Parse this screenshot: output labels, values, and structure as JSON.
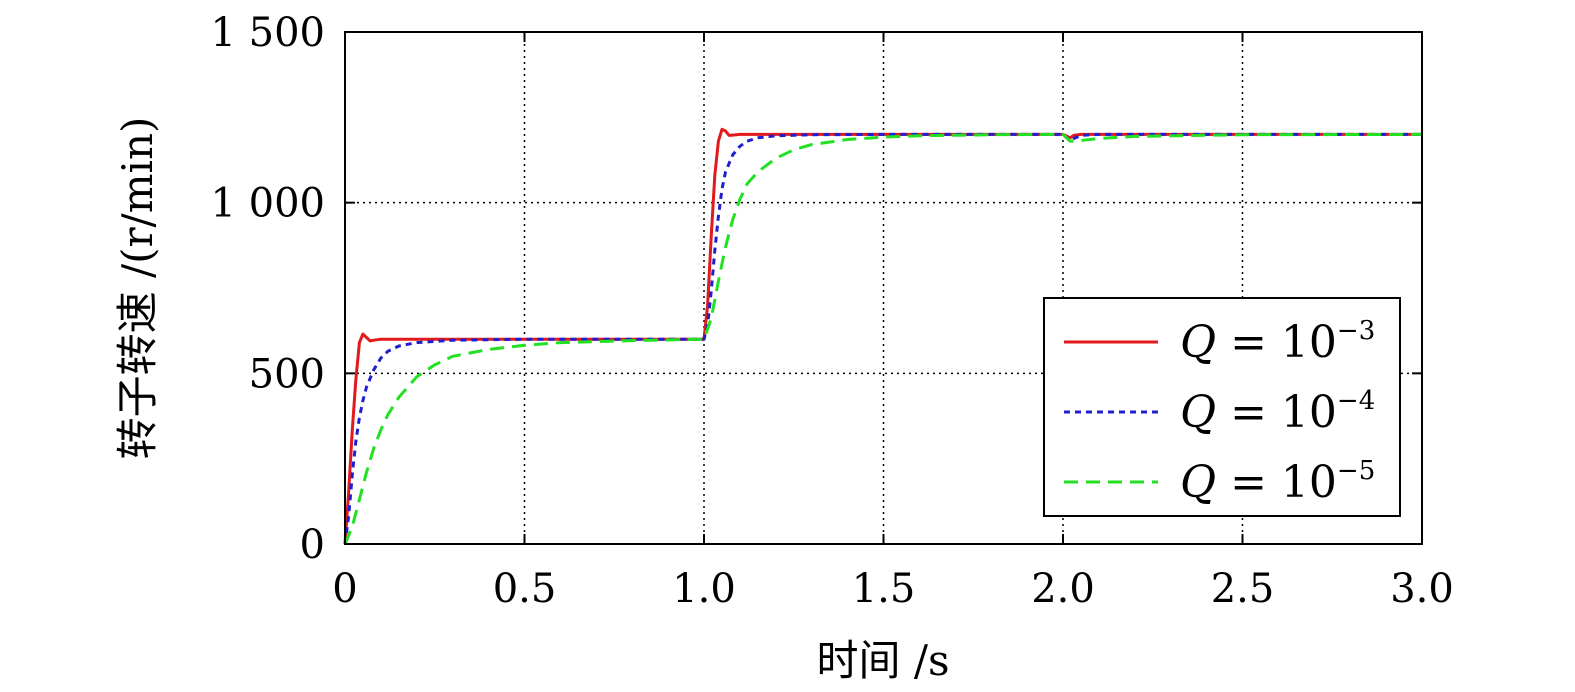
{
  "chart_data": {
    "type": "line",
    "xlabel": "时间 /s",
    "ylabel": "转子转速 /(r/min)",
    "xlim": [
      0,
      3.0
    ],
    "ylim": [
      0,
      1500
    ],
    "xticks": [
      0,
      0.5,
      1.0,
      1.5,
      2.0,
      2.5,
      3.0
    ],
    "xtick_labels": [
      "0",
      "0.5",
      "1.0",
      "1.5",
      "2.0",
      "2.5",
      "3.0"
    ],
    "yticks": [
      0,
      500,
      1000,
      1500
    ],
    "ytick_labels": [
      "0",
      "500",
      "1 000",
      "1 500"
    ],
    "grid": true,
    "legend_position": "lower-right",
    "series": [
      {
        "name": "Q = 10^-3",
        "label_prefix": "Q",
        "label_eq": " = 10",
        "label_exp": "−3",
        "color": "#e31a1c",
        "dash": "solid",
        "x": [
          0,
          0.01,
          0.02,
          0.03,
          0.04,
          0.05,
          0.06,
          0.07,
          0.08,
          0.1,
          0.15,
          0.5,
          1.0,
          1.01,
          1.02,
          1.03,
          1.04,
          1.05,
          1.06,
          1.07,
          1.08,
          1.1,
          1.15,
          1.5,
          2.0,
          2.01,
          2.02,
          2.03,
          2.05,
          2.1,
          2.5,
          3.0
        ],
        "y": [
          0,
          150,
          330,
          480,
          590,
          615,
          605,
          595,
          597,
          600,
          600,
          600,
          600,
          700,
          900,
          1080,
          1180,
          1215,
          1210,
          1197,
          1198,
          1200,
          1200,
          1200,
          1200,
          1195,
          1190,
          1197,
          1200,
          1200,
          1200,
          1200
        ]
      },
      {
        "name": "Q = 10^-4",
        "label_prefix": "Q",
        "label_eq": " = 10",
        "label_exp": "−4",
        "color": "#1f1fd1",
        "dash": "dotted",
        "x": [
          0,
          0.01,
          0.02,
          0.03,
          0.04,
          0.05,
          0.06,
          0.08,
          0.1,
          0.12,
          0.15,
          0.2,
          0.3,
          0.5,
          1.0,
          1.01,
          1.02,
          1.03,
          1.04,
          1.05,
          1.06,
          1.08,
          1.1,
          1.12,
          1.15,
          1.2,
          1.3,
          1.5,
          2.0,
          2.01,
          2.02,
          2.03,
          2.05,
          2.1,
          2.5,
          3.0
        ],
        "y": [
          0,
          80,
          200,
          300,
          370,
          420,
          460,
          510,
          545,
          565,
          580,
          590,
          597,
          600,
          600,
          640,
          740,
          860,
          960,
          1040,
          1090,
          1140,
          1165,
          1180,
          1190,
          1196,
          1199,
          1200,
          1200,
          1190,
          1180,
          1188,
          1197,
          1200,
          1200,
          1200
        ]
      },
      {
        "name": "Q = 10^-5",
        "label_prefix": "Q",
        "label_eq": " = 10",
        "label_exp": "−5",
        "color": "#22e022",
        "dash": "dashed",
        "x": [
          0,
          0.02,
          0.04,
          0.06,
          0.08,
          0.1,
          0.12,
          0.15,
          0.2,
          0.25,
          0.3,
          0.4,
          0.5,
          0.6,
          0.8,
          1.0,
          1.02,
          1.04,
          1.06,
          1.08,
          1.1,
          1.12,
          1.15,
          1.2,
          1.25,
          1.3,
          1.4,
          1.5,
          1.6,
          1.8,
          2.0,
          2.02,
          2.05,
          2.1,
          2.2,
          2.5,
          3.0
        ],
        "y": [
          0,
          50,
          130,
          210,
          280,
          335,
          380,
          430,
          490,
          525,
          550,
          570,
          582,
          590,
          596,
          600,
          660,
          770,
          870,
          950,
          1010,
          1055,
          1090,
          1130,
          1155,
          1170,
          1185,
          1192,
          1196,
          1199,
          1200,
          1180,
          1182,
          1188,
          1194,
          1199,
          1200
        ]
      }
    ]
  }
}
